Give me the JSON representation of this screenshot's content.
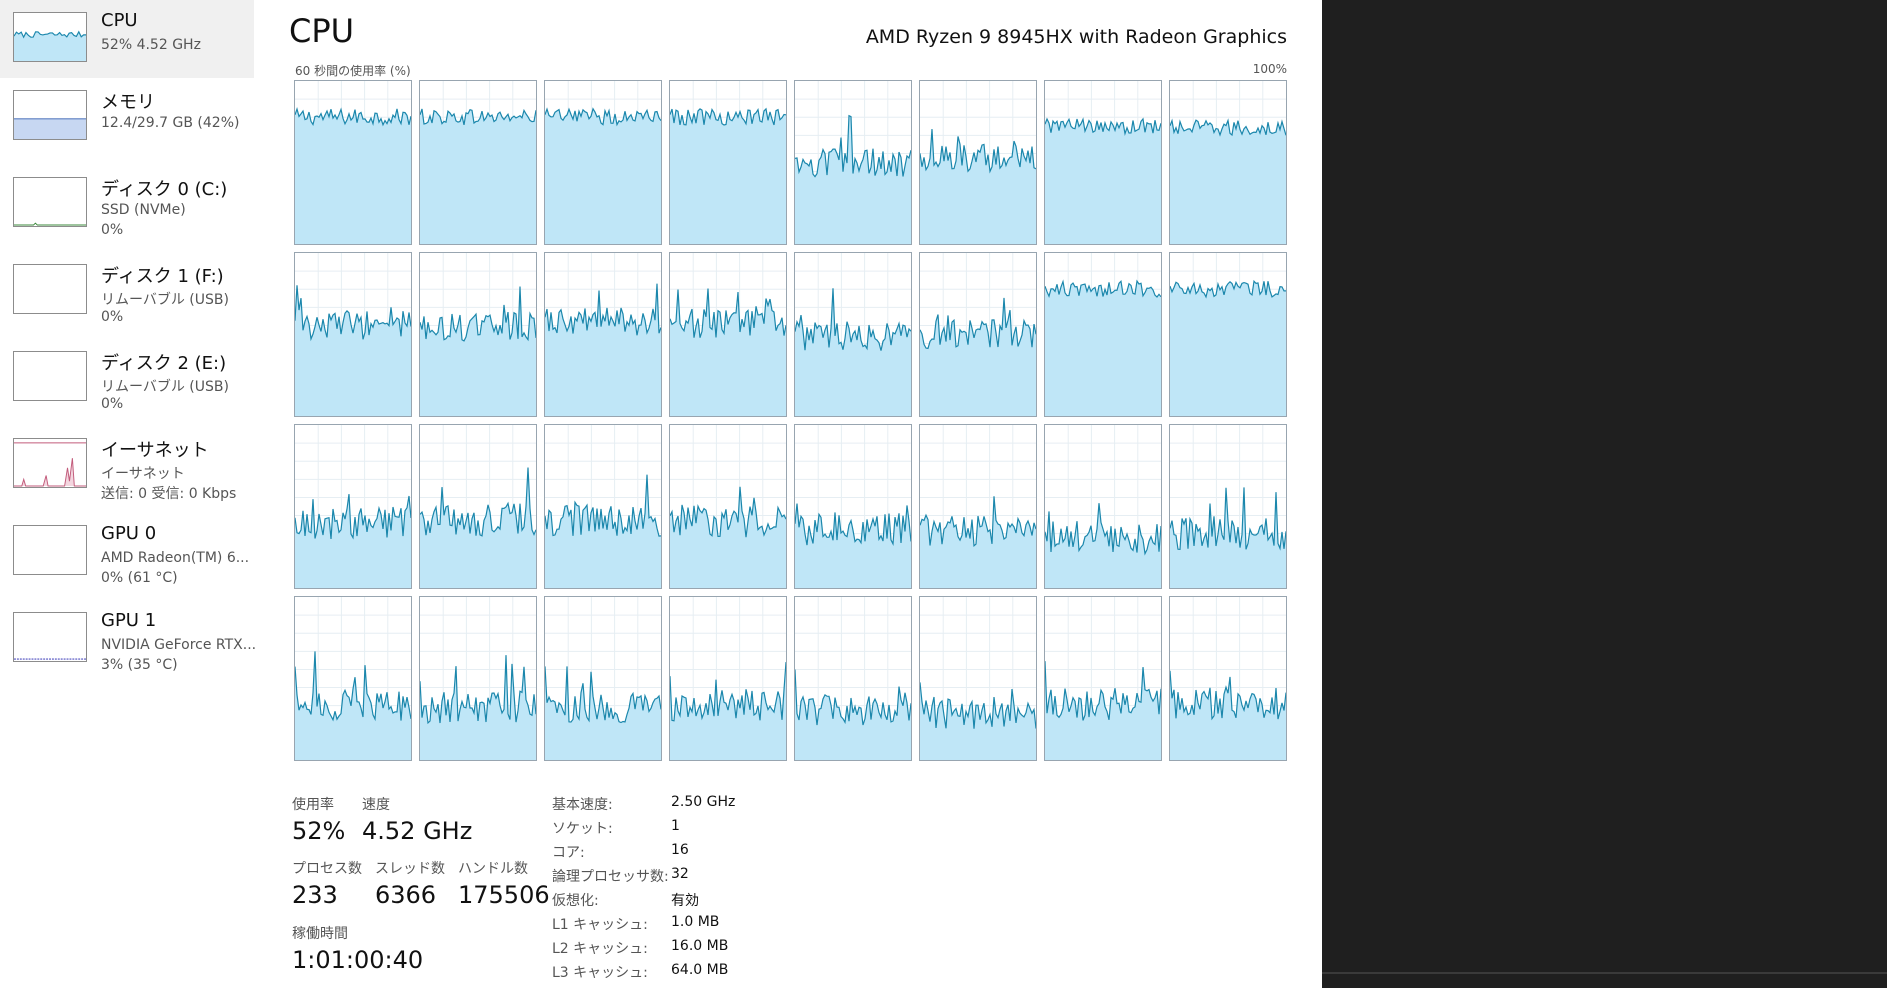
{
  "sidebar": {
    "items": [
      {
        "title": "CPU",
        "line1": "52% 4.52 GHz",
        "line2": "",
        "graph": "cpu"
      },
      {
        "title": "メモリ",
        "line1": "12.4/29.7 GB (42%)",
        "line2": "",
        "graph": "memory"
      },
      {
        "title": "ディスク 0 (C:)",
        "line1": "SSD (NVMe)",
        "line2": "0%",
        "graph": "disk"
      },
      {
        "title": "ディスク 1 (F:)",
        "line1": "リムーバブル (USB)",
        "line2": "0%",
        "graph": "empty"
      },
      {
        "title": "ディスク 2 (E:)",
        "line1": "リムーバブル (USB)",
        "line2": "0%",
        "graph": "empty"
      },
      {
        "title": "イーサネット",
        "line1": "イーサネット",
        "line2": "送信: 0 受信: 0 Kbps",
        "graph": "ethernet"
      },
      {
        "title": "GPU 0",
        "line1": "AMD Radeon(TM) 6...",
        "line2": "0% (61 °C)",
        "graph": "empty"
      },
      {
        "title": "GPU 1",
        "line1": "NVIDIA GeForce RTX...",
        "line2": "3% (35 °C)",
        "graph": "gpu1"
      }
    ]
  },
  "header": {
    "title": "CPU",
    "model": "AMD Ryzen 9 8945HX with Radeon Graphics",
    "graph_label": "60 秒間の使用率 (%)",
    "graph_max": "100%"
  },
  "colors": {
    "cpu_fill": "#bfe6f7",
    "cpu_line": "#1b87ac",
    "memory_line": "#5b7fc0",
    "memory_fill": "#c7d7f2",
    "ethernet_line": "#c25b7b",
    "gpu_line": "#4c4cbf"
  },
  "core_levels_percent": [
    [
      78,
      78,
      78,
      78,
      50,
      53,
      72,
      71
    ],
    [
      56,
      55,
      58,
      57,
      49,
      50,
      78,
      78
    ],
    [
      40,
      42,
      41,
      41,
      36,
      35,
      31,
      33
    ],
    [
      34,
      32,
      33,
      34,
      30,
      29,
      34,
      35
    ]
  ],
  "stats": {
    "usage_label": "使用率",
    "usage_value": "52%",
    "speed_label": "速度",
    "speed_value": "4.52 GHz",
    "processes_label": "プロセス数",
    "processes_value": "233",
    "threads_label": "スレッド数",
    "threads_value": "6366",
    "handles_label": "ハンドル数",
    "handles_value": "175506",
    "uptime_label": "稼働時間",
    "uptime_value": "1:01:00:40"
  },
  "specs": [
    {
      "label": "基本速度:",
      "value": "2.50 GHz"
    },
    {
      "label": "ソケット:",
      "value": "1"
    },
    {
      "label": "コア:",
      "value": "16"
    },
    {
      "label": "論理プロセッサ数:",
      "value": "32"
    },
    {
      "label": "仮想化:",
      "value": "有効"
    },
    {
      "label": "L1 キャッシュ:",
      "value": "1.0 MB"
    },
    {
      "label": "L2 キャッシュ:",
      "value": "16.0 MB"
    },
    {
      "label": "L3 キャッシュ:",
      "value": "64.0 MB"
    }
  ]
}
